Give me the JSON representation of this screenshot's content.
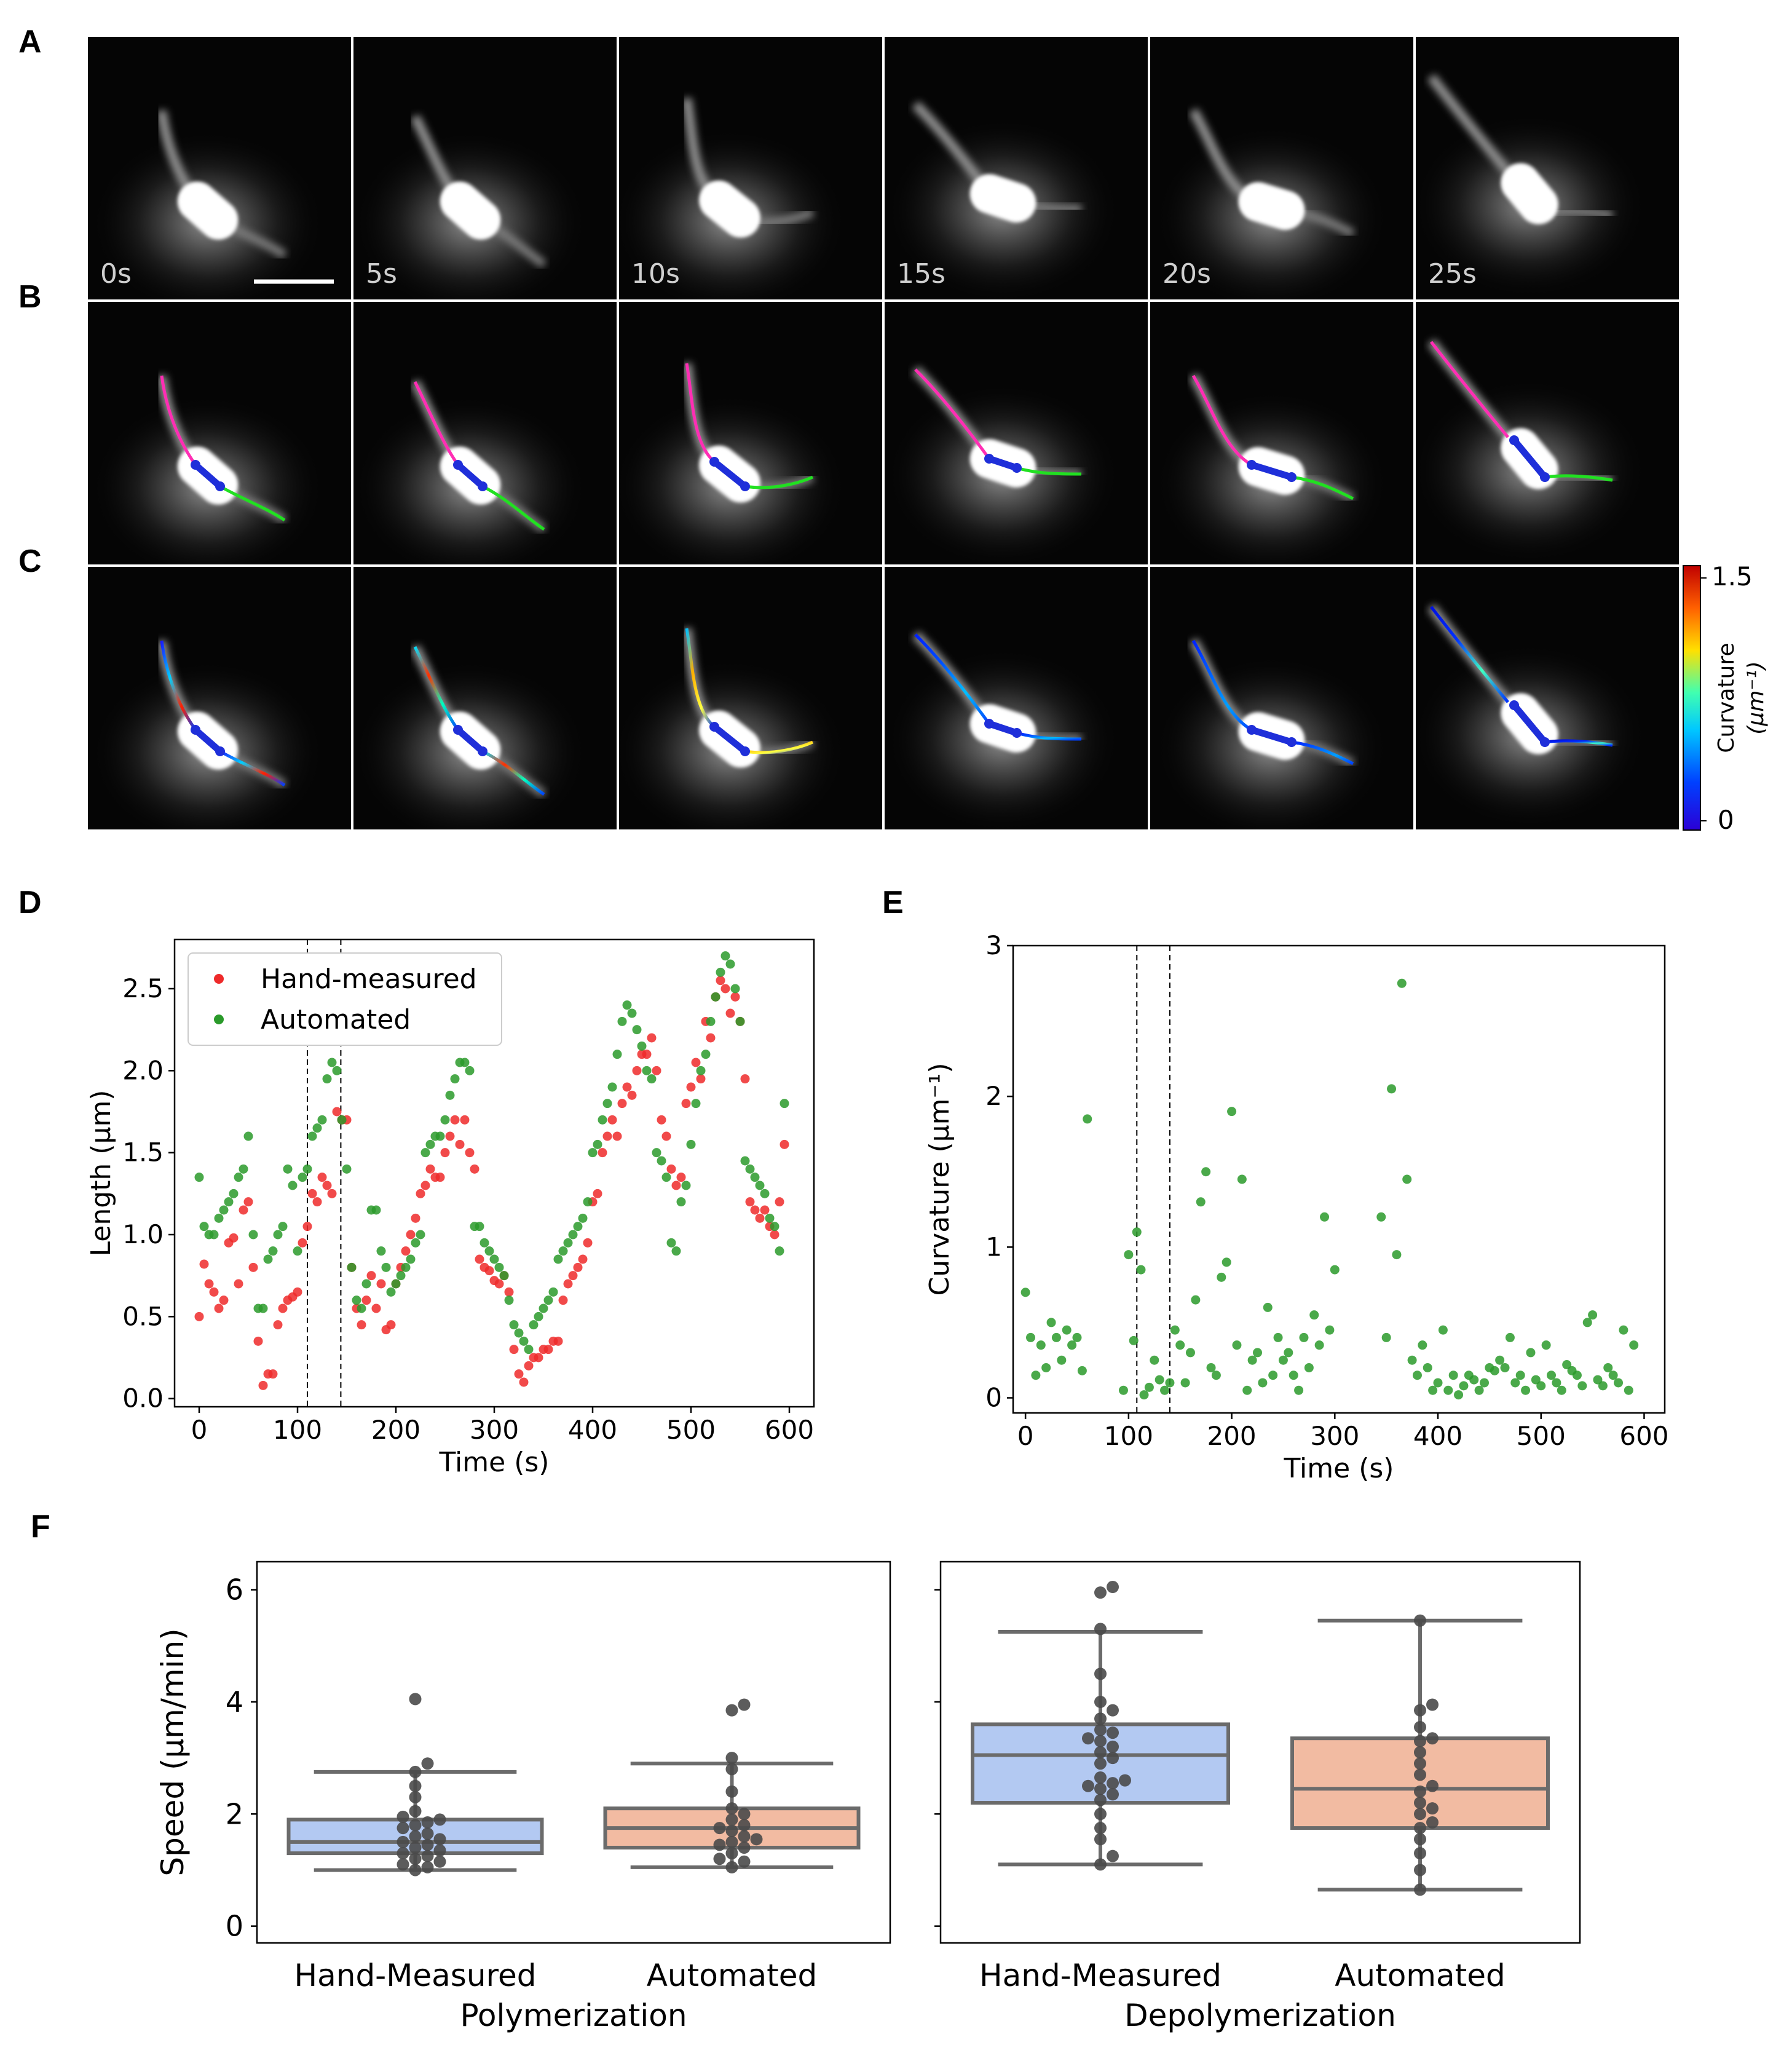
{
  "panels": {
    "A": "A",
    "B": "B",
    "C": "C",
    "D": "D",
    "E": "E",
    "F": "F"
  },
  "timestamps": [
    "0s",
    "5s",
    "10s",
    "15s",
    "20s",
    "25s"
  ],
  "colorbar": {
    "label": "Curvature",
    "unit": "(μm⁻¹)",
    "max_label": "1.5",
    "min_label": "0",
    "colors": [
      "#2b00d6",
      "#0040ff",
      "#00c8ff",
      "#40ffb0",
      "#ffe000",
      "#ff6000",
      "#c00000"
    ]
  },
  "microtubule_colors": {
    "minus_end": "#ff2eb4",
    "plus_end": "#21e021",
    "centrosome": "#1f2fd9"
  },
  "chart_data": [
    {
      "id": "D",
      "type": "scatter",
      "xlabel": "Time (s)",
      "ylabel": "Length (μm)",
      "xlim": [
        -25,
        625
      ],
      "ylim": [
        -0.05,
        2.8
      ],
      "xticks": [
        0,
        100,
        200,
        300,
        400,
        500,
        600
      ],
      "yticks": [
        0.0,
        0.5,
        1.0,
        1.5,
        2.0,
        2.5
      ],
      "ytick_labels": [
        "0.0",
        "0.5",
        "1.0",
        "1.5",
        "2.0",
        "2.5"
      ],
      "vlines": [
        110,
        144
      ],
      "legend": {
        "placement": "top-left",
        "entries": [
          "Hand-measured",
          "Automated"
        ]
      },
      "series": [
        {
          "name": "Hand-measured",
          "color": "#ee2a2a",
          "x": [
            0,
            5,
            10,
            15,
            20,
            25,
            30,
            35,
            40,
            45,
            50,
            55,
            60,
            65,
            70,
            75,
            80,
            85,
            90,
            95,
            100,
            105,
            110,
            115,
            120,
            125,
            130,
            135,
            140,
            145,
            150,
            155,
            160,
            165,
            170,
            175,
            180,
            185,
            190,
            195,
            200,
            205,
            210,
            215,
            220,
            225,
            230,
            235,
            240,
            245,
            250,
            255,
            260,
            265,
            270,
            275,
            280,
            285,
            290,
            295,
            300,
            305,
            310,
            315,
            320,
            325,
            330,
            335,
            340,
            345,
            350,
            355,
            360,
            365,
            370,
            375,
            380,
            385,
            390,
            395,
            400,
            405,
            410,
            415,
            420,
            425,
            430,
            435,
            440,
            445,
            450,
            455,
            460,
            465,
            470,
            475,
            480,
            485,
            490,
            495,
            500,
            505,
            510,
            515,
            520,
            525,
            530,
            535,
            540,
            545,
            550,
            555,
            560,
            565,
            570,
            575,
            580,
            585,
            590,
            595
          ],
          "y": [
            0.5,
            0.82,
            0.7,
            0.65,
            0.55,
            0.6,
            0.95,
            0.98,
            0.7,
            1.15,
            1.2,
            0.8,
            0.35,
            0.08,
            0.15,
            0.15,
            0.45,
            0.55,
            0.6,
            0.62,
            0.65,
            0.95,
            1.05,
            1.25,
            1.2,
            1.35,
            1.3,
            1.25,
            1.75,
            1.7,
            1.7,
            0.8,
            0.55,
            0.45,
            0.6,
            0.75,
            0.55,
            0.7,
            0.42,
            0.45,
            0.7,
            0.8,
            0.9,
            1.0,
            1.1,
            1.25,
            1.3,
            1.4,
            1.35,
            1.35,
            1.5,
            1.6,
            1.7,
            1.55,
            1.7,
            1.5,
            1.4,
            0.85,
            0.8,
            0.78,
            0.72,
            0.7,
            0.75,
            0.65,
            0.3,
            0.15,
            0.1,
            0.2,
            0.25,
            0.25,
            0.3,
            0.3,
            0.35,
            0.35,
            0.6,
            0.7,
            0.75,
            0.8,
            0.85,
            0.95,
            1.2,
            1.25,
            1.5,
            1.6,
            1.7,
            1.6,
            1.8,
            1.9,
            1.85,
            2.0,
            2.1,
            2.1,
            2.2,
            2.0,
            1.7,
            1.6,
            1.4,
            1.3,
            1.35,
            1.8,
            1.9,
            2.05,
            1.95,
            2.3,
            2.2,
            2.45,
            2.55,
            2.5,
            2.35,
            2.45,
            2.3,
            1.95,
            1.2,
            1.15,
            1.1,
            1.15,
            1.05,
            1.0,
            1.2,
            1.55
          ]
        },
        {
          "name": "Automated",
          "color": "#2a9a2a",
          "x": [
            0,
            5,
            10,
            15,
            20,
            25,
            30,
            35,
            40,
            45,
            50,
            55,
            60,
            65,
            70,
            75,
            80,
            85,
            90,
            95,
            100,
            105,
            110,
            115,
            120,
            125,
            130,
            135,
            140,
            145,
            150,
            155,
            160,
            165,
            170,
            175,
            180,
            185,
            190,
            195,
            200,
            205,
            210,
            215,
            220,
            225,
            230,
            235,
            240,
            245,
            250,
            255,
            260,
            265,
            270,
            275,
            280,
            285,
            290,
            295,
            300,
            305,
            310,
            315,
            320,
            325,
            330,
            335,
            340,
            345,
            350,
            355,
            360,
            365,
            370,
            375,
            380,
            385,
            390,
            395,
            400,
            405,
            410,
            415,
            420,
            425,
            430,
            435,
            440,
            445,
            450,
            455,
            460,
            465,
            470,
            475,
            480,
            485,
            490,
            495,
            500,
            505,
            510,
            515,
            520,
            525,
            530,
            535,
            540,
            545,
            550,
            555,
            560,
            565,
            570,
            575,
            580,
            585,
            590,
            595
          ],
          "y": [
            1.35,
            1.05,
            1.0,
            1.0,
            1.1,
            1.15,
            1.2,
            1.25,
            1.35,
            1.4,
            1.6,
            1.0,
            0.55,
            0.55,
            0.85,
            0.9,
            1.0,
            1.05,
            1.4,
            1.3,
            0.9,
            1.35,
            1.4,
            1.6,
            1.65,
            1.7,
            1.95,
            2.05,
            2.0,
            1.7,
            1.4,
            0.8,
            0.6,
            0.55,
            0.7,
            1.15,
            1.15,
            0.9,
            0.8,
            0.65,
            0.7,
            0.75,
            0.8,
            0.85,
            0.95,
            1.0,
            1.5,
            1.55,
            1.6,
            1.6,
            1.7,
            1.85,
            1.95,
            2.05,
            2.05,
            2.0,
            1.05,
            1.05,
            0.95,
            0.9,
            0.85,
            0.8,
            0.75,
            0.6,
            0.45,
            0.4,
            0.35,
            0.3,
            0.45,
            0.5,
            0.55,
            0.6,
            0.65,
            0.85,
            0.9,
            0.95,
            1.0,
            1.05,
            1.1,
            1.2,
            1.5,
            1.55,
            1.7,
            1.8,
            1.9,
            2.1,
            2.3,
            2.4,
            2.35,
            2.25,
            2.15,
            2.0,
            1.95,
            1.5,
            1.45,
            1.35,
            0.95,
            0.9,
            1.2,
            1.3,
            1.55,
            1.8,
            2.0,
            2.1,
            2.3,
            2.45,
            2.6,
            2.7,
            2.65,
            2.5,
            2.3,
            1.45,
            1.4,
            1.35,
            1.3,
            1.25,
            1.1,
            1.05,
            0.9,
            1.8
          ]
        }
      ]
    },
    {
      "id": "E",
      "type": "scatter",
      "xlabel": "Time (s)",
      "ylabel": "Curvature (μm⁻¹)",
      "xlim": [
        -12,
        620
      ],
      "ylim": [
        -0.1,
        3.0
      ],
      "xticks": [
        0,
        100,
        200,
        300,
        400,
        500,
        600
      ],
      "yticks": [
        0,
        1,
        2,
        3
      ],
      "vlines": [
        108,
        140
      ],
      "series": [
        {
          "name": "Automated",
          "color": "#2a9a2a",
          "x": [
            0,
            5,
            10,
            15,
            20,
            25,
            30,
            35,
            40,
            45,
            50,
            55,
            60,
            95,
            100,
            105,
            108,
            112,
            115,
            120,
            125,
            130,
            135,
            140,
            145,
            150,
            155,
            160,
            165,
            170,
            175,
            180,
            185,
            190,
            195,
            200,
            205,
            210,
            215,
            220,
            225,
            230,
            235,
            240,
            245,
            250,
            255,
            260,
            265,
            270,
            275,
            280,
            285,
            290,
            295,
            300,
            345,
            350,
            355,
            360,
            365,
            370,
            375,
            380,
            385,
            390,
            395,
            400,
            405,
            410,
            415,
            420,
            425,
            430,
            435,
            440,
            445,
            450,
            455,
            460,
            465,
            470,
            475,
            480,
            485,
            490,
            495,
            500,
            505,
            510,
            515,
            520,
            525,
            530,
            535,
            540,
            545,
            550,
            555,
            560,
            565,
            570,
            575,
            580,
            585,
            590
          ],
          "y": [
            0.7,
            0.4,
            0.15,
            0.35,
            0.2,
            0.5,
            0.4,
            0.25,
            0.45,
            0.35,
            0.4,
            0.18,
            1.85,
            0.05,
            0.95,
            0.38,
            1.1,
            0.85,
            0.02,
            0.07,
            0.25,
            0.12,
            0.05,
            0.1,
            0.45,
            0.35,
            0.1,
            0.3,
            0.65,
            1.3,
            1.5,
            0.2,
            0.15,
            0.8,
            0.9,
            1.9,
            0.35,
            1.45,
            0.05,
            0.25,
            0.3,
            0.1,
            0.6,
            0.15,
            0.4,
            0.25,
            0.3,
            0.15,
            0.05,
            0.4,
            0.2,
            0.55,
            0.35,
            1.2,
            0.45,
            0.85,
            1.2,
            0.4,
            2.05,
            0.95,
            2.75,
            1.45,
            0.25,
            0.15,
            0.35,
            0.2,
            0.05,
            0.1,
            0.45,
            0.05,
            0.15,
            0.02,
            0.08,
            0.15,
            0.12,
            0.05,
            0.1,
            0.2,
            0.18,
            0.25,
            0.2,
            0.4,
            0.1,
            0.15,
            0.05,
            0.3,
            0.12,
            0.08,
            0.35,
            0.15,
            0.1,
            0.05,
            0.22,
            0.18,
            0.15,
            0.08,
            0.5,
            0.55,
            0.12,
            0.08,
            0.2,
            0.15,
            0.1,
            0.45,
            0.05,
            0.35
          ]
        }
      ]
    },
    {
      "id": "F-left",
      "type": "box",
      "group": "Polymerization",
      "ylabel": "Speed (μm/min)",
      "ylim": [
        0,
        6.5
      ],
      "yticks": [
        0,
        2,
        4,
        6
      ],
      "categories": [
        "Hand-Measured",
        "Automated"
      ],
      "boxes": [
        {
          "color": "#b3c9f2",
          "min": 1.0,
          "q1": 1.3,
          "median": 1.5,
          "q3": 1.9,
          "max": 2.75,
          "points": [
            1.0,
            1.05,
            1.1,
            1.15,
            1.2,
            1.25,
            1.3,
            1.35,
            1.4,
            1.45,
            1.5,
            1.55,
            1.6,
            1.65,
            1.75,
            1.8,
            1.85,
            1.9,
            1.95,
            2.05,
            2.3,
            2.5,
            2.75,
            2.9,
            4.05
          ]
        },
        {
          "color": "#f2bba2",
          "min": 1.05,
          "q1": 1.4,
          "median": 1.75,
          "q3": 2.1,
          "max": 2.9,
          "points": [
            1.05,
            1.15,
            1.2,
            1.3,
            1.4,
            1.45,
            1.5,
            1.55,
            1.6,
            1.7,
            1.75,
            1.8,
            1.9,
            2.0,
            2.1,
            2.4,
            2.8,
            3.0,
            3.85,
            3.95
          ]
        }
      ]
    },
    {
      "id": "F-right",
      "type": "box",
      "group": "Depolymerization",
      "ylim": [
        0,
        6.5
      ],
      "yticks": [
        0,
        2,
        4,
        6
      ],
      "categories": [
        "Hand-Measured",
        "Automated"
      ],
      "boxes": [
        {
          "color": "#b3c9f2",
          "min": 1.1,
          "q1": 2.2,
          "median": 3.05,
          "q3": 3.6,
          "max": 5.25,
          "points": [
            1.1,
            1.25,
            1.55,
            1.75,
            2.0,
            2.25,
            2.35,
            2.45,
            2.5,
            2.55,
            2.6,
            2.65,
            2.9,
            3.0,
            3.1,
            3.2,
            3.3,
            3.35,
            3.45,
            3.5,
            3.7,
            3.85,
            4.0,
            4.5,
            5.3,
            5.95,
            6.05
          ]
        },
        {
          "color": "#f2bba2",
          "min": 0.65,
          "q1": 1.75,
          "median": 2.45,
          "q3": 3.35,
          "max": 5.45,
          "points": [
            0.65,
            1.0,
            1.3,
            1.55,
            1.75,
            1.85,
            2.0,
            2.1,
            2.2,
            2.4,
            2.5,
            2.7,
            2.9,
            3.1,
            3.3,
            3.35,
            3.55,
            3.85,
            3.95,
            5.45
          ]
        }
      ]
    }
  ]
}
